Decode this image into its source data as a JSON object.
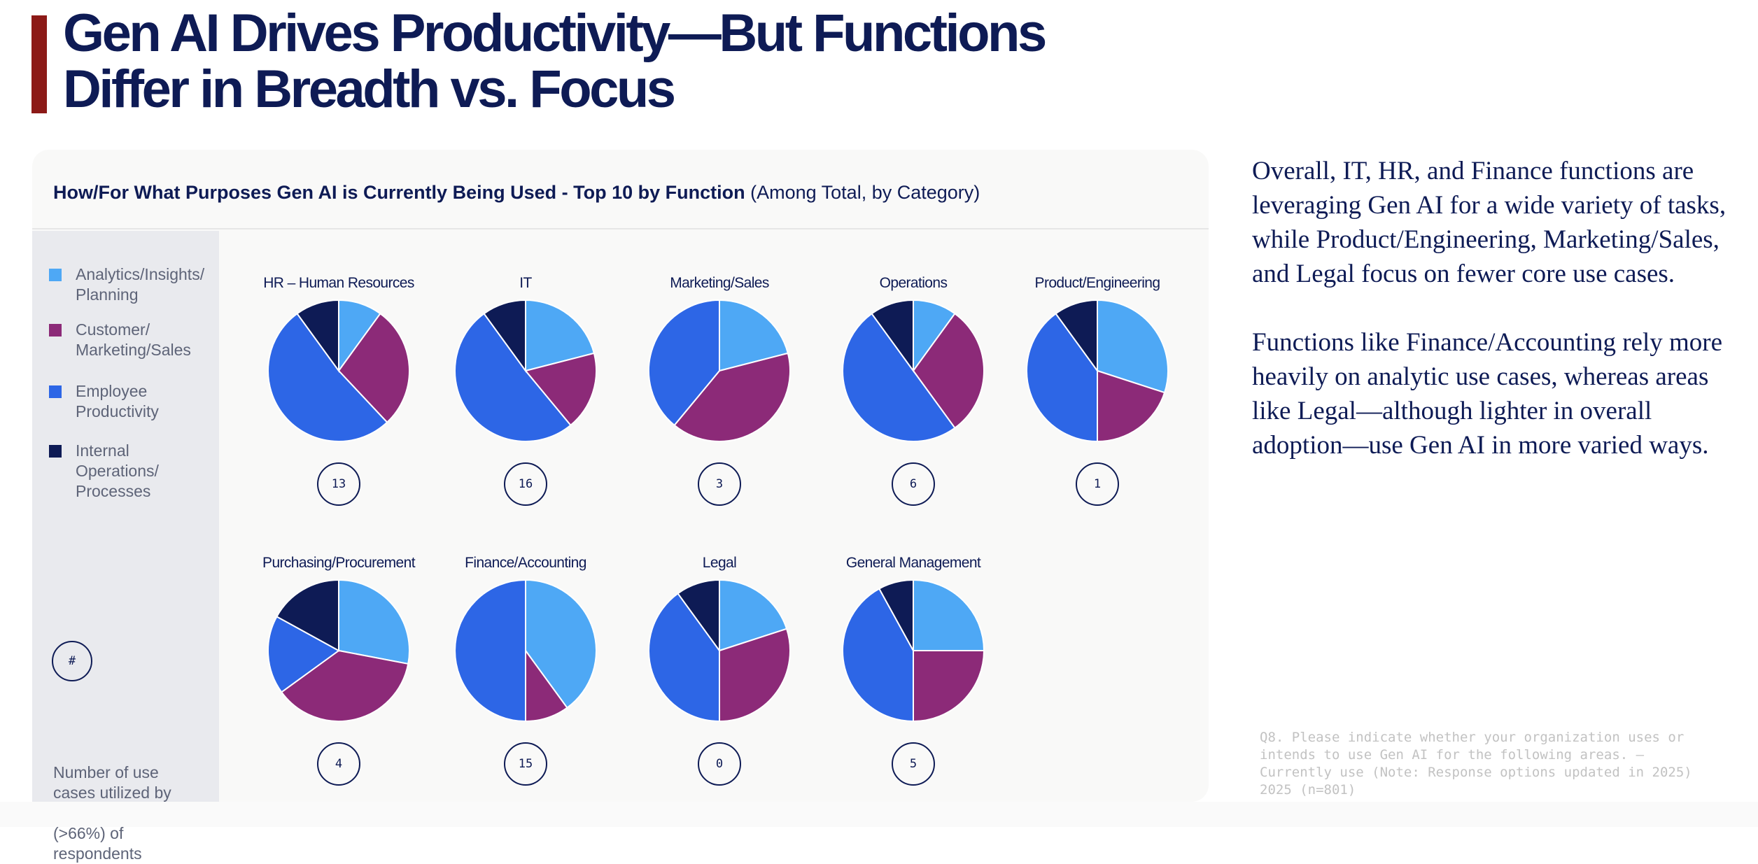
{
  "title": {
    "line1": "Gen AI Drives Productivity—But Functions",
    "line2": "Differ in Breadth vs. Focus"
  },
  "panel": {
    "title_bold": "How/For What Purposes Gen AI is Currently Being Used - Top 10 by Function",
    "title_normal": "(Among Total, by Category)"
  },
  "legend": {
    "items": [
      {
        "label": "Analytics/Insights/ Planning",
        "color": "#4ea8f5"
      },
      {
        "label": "Customer/ Marketing/Sales",
        "color": "#8c2a78"
      },
      {
        "label": "Employee Productivity",
        "color": "#2d66e6"
      },
      {
        "label": "Internal Operations/ Processes",
        "color": "#0e1b55"
      }
    ],
    "count_symbol": "#",
    "count_text": "Number of use cases utilized by over two-thirds (>66%) of respondents"
  },
  "chart_data": {
    "type": "pie",
    "title": "How/For What Purposes Gen AI is Currently Being Used - Top 10 by Function (Among Total, by Category)",
    "categories": [
      "Analytics/Insights/Planning",
      "Customer/Marketing/Sales",
      "Employee Productivity",
      "Internal Operations/Processes"
    ],
    "colors": [
      "#4ea8f5",
      "#8c2a78",
      "#2d66e6",
      "#0e1b55"
    ],
    "units": "percent share (estimated from slice angles)",
    "series": [
      {
        "name": "HR – Human Resources",
        "count": "13",
        "values": [
          10,
          28,
          52,
          10
        ]
      },
      {
        "name": "IT",
        "count": "16",
        "values": [
          21,
          18,
          51,
          10
        ]
      },
      {
        "name": "Marketing/Sales",
        "count": "3",
        "values": [
          21,
          40,
          39,
          0
        ]
      },
      {
        "name": "Operations",
        "count": "6",
        "values": [
          10,
          30,
          50,
          10
        ]
      },
      {
        "name": "Product/Engineering",
        "count": "1",
        "values": [
          30,
          20,
          40,
          10
        ]
      },
      {
        "name": "Purchasing/Procurement",
        "count": "4",
        "values": [
          28,
          37,
          18,
          17
        ]
      },
      {
        "name": "Finance/Accounting",
        "count": "15",
        "values": [
          40,
          10,
          50,
          0
        ]
      },
      {
        "name": "Legal",
        "count": "0",
        "values": [
          20,
          30,
          40,
          10
        ]
      },
      {
        "name": "General Management",
        "count": "5",
        "values": [
          25,
          25,
          42,
          8
        ]
      }
    ]
  },
  "commentary": {
    "p1": "Overall, IT, HR, and Finance functions are leveraging Gen AI for a wide variety of tasks, while Product/Engineering, Marketing/Sales, and Legal focus on fewer core use cases.",
    "p2": "Functions like Finance/Accounting rely more heavily on analytic use cases, whereas areas like Legal—although lighter in overall adoption—use Gen AI in more varied ways."
  },
  "footnote": "Q8. Please indicate whether your organization uses or intends to use Gen AI for the following areas. – Currently use (Note: Response options updated in 2025) 2025 (n=801)"
}
